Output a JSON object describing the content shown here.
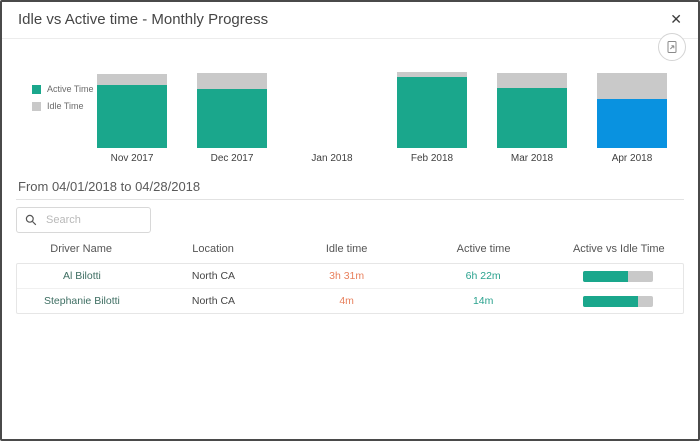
{
  "dialog": {
    "title": "Idle vs Active time - Monthly Progress",
    "close_glyph": "✕"
  },
  "colors": {
    "active_teal": "#1aa78c",
    "selected_blue": "#0992e0",
    "idle_gray": "#c9c9c9",
    "idle_text_orange": "#e8815d",
    "active_text_teal": "#2aa28e"
  },
  "chart": {
    "legend": [
      {
        "label": "Active Time",
        "color": "#1aa78c"
      },
      {
        "label": "Idle Time",
        "color": "#c9c9c9"
      }
    ],
    "months": [
      {
        "label": "Nov 2017",
        "idle_h": 11,
        "active_h": 63,
        "bar_color": "#1aa78c",
        "selected": false
      },
      {
        "label": "Dec 2017",
        "idle_h": 16,
        "active_h": 59,
        "bar_color": "#1aa78c",
        "selected": false
      },
      {
        "label": "Jan 2018",
        "idle_h": 0,
        "active_h": 0,
        "bar_color": "#1aa78c",
        "selected": false
      },
      {
        "label": "Feb 2018",
        "idle_h": 5,
        "active_h": 71,
        "bar_color": "#1aa78c",
        "selected": false
      },
      {
        "label": "Mar 2018",
        "idle_h": 15,
        "active_h": 60,
        "bar_color": "#1aa78c",
        "selected": false
      },
      {
        "label": "Apr 2018",
        "idle_h": 26,
        "active_h": 49,
        "bar_color": "#0992e0",
        "selected": true
      }
    ]
  },
  "date_range": "From 04/01/2018 to 04/28/2018",
  "search": {
    "placeholder": "Search"
  },
  "table": {
    "columns": [
      "Driver Name",
      "Location",
      "Idle time",
      "Active time",
      "Active vs Idle Time"
    ],
    "rows": [
      {
        "driver": "Al Bilotti",
        "location": "North CA",
        "idle": "3h 31m",
        "active": "6h 22m",
        "active_pct": 64
      },
      {
        "driver": "Stephanie Bilotti",
        "location": "North CA",
        "idle": "4m",
        "active": "14m",
        "active_pct": 78
      }
    ]
  }
}
